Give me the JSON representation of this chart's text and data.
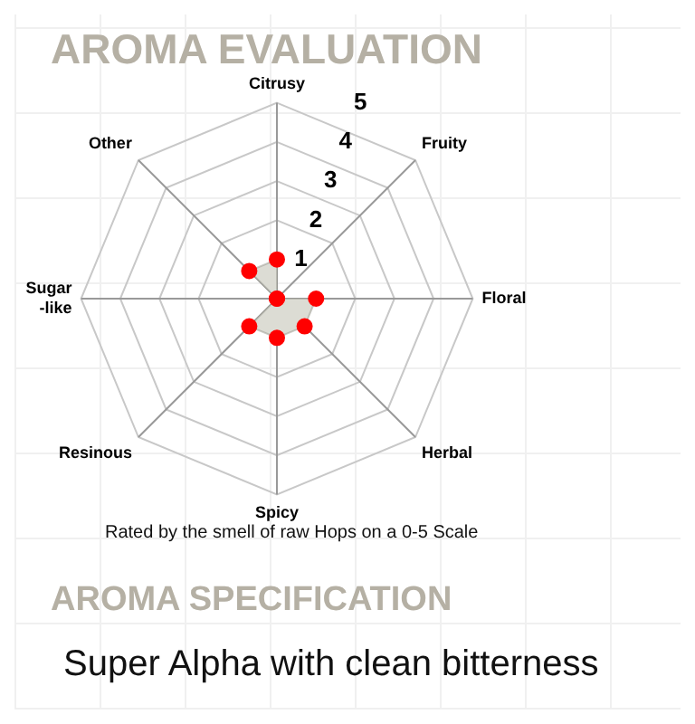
{
  "chart_data": {
    "type": "radar",
    "title": "AROMA EVALUATION",
    "categories": [
      "Citrusy",
      "Fruity",
      "Floral",
      "Herbal",
      "Spicy",
      "Resinous",
      "Sugar\n-like",
      "Other"
    ],
    "series": [
      {
        "color": "#dcdcd4",
        "colors": [
          "#ff0000",
          "#ff0000",
          "#ff0000",
          "#ff0000",
          "#ff0000",
          "#ff0000",
          "#ff0000",
          "#ff0000"
        ],
        "values": [
          1,
          0,
          1,
          1,
          1,
          1,
          0,
          1
        ]
      }
    ],
    "ylim": [
      0,
      5
    ],
    "yticks": [
      1,
      2,
      3,
      4,
      5
    ],
    "grid": true,
    "marker": "circle",
    "annotations": [
      "Rated by the smell of raw Hops on a 0-5 Scale",
      "AROMA SPECIFICATION",
      "Super Alpha with clean bitterness"
    ]
  }
}
